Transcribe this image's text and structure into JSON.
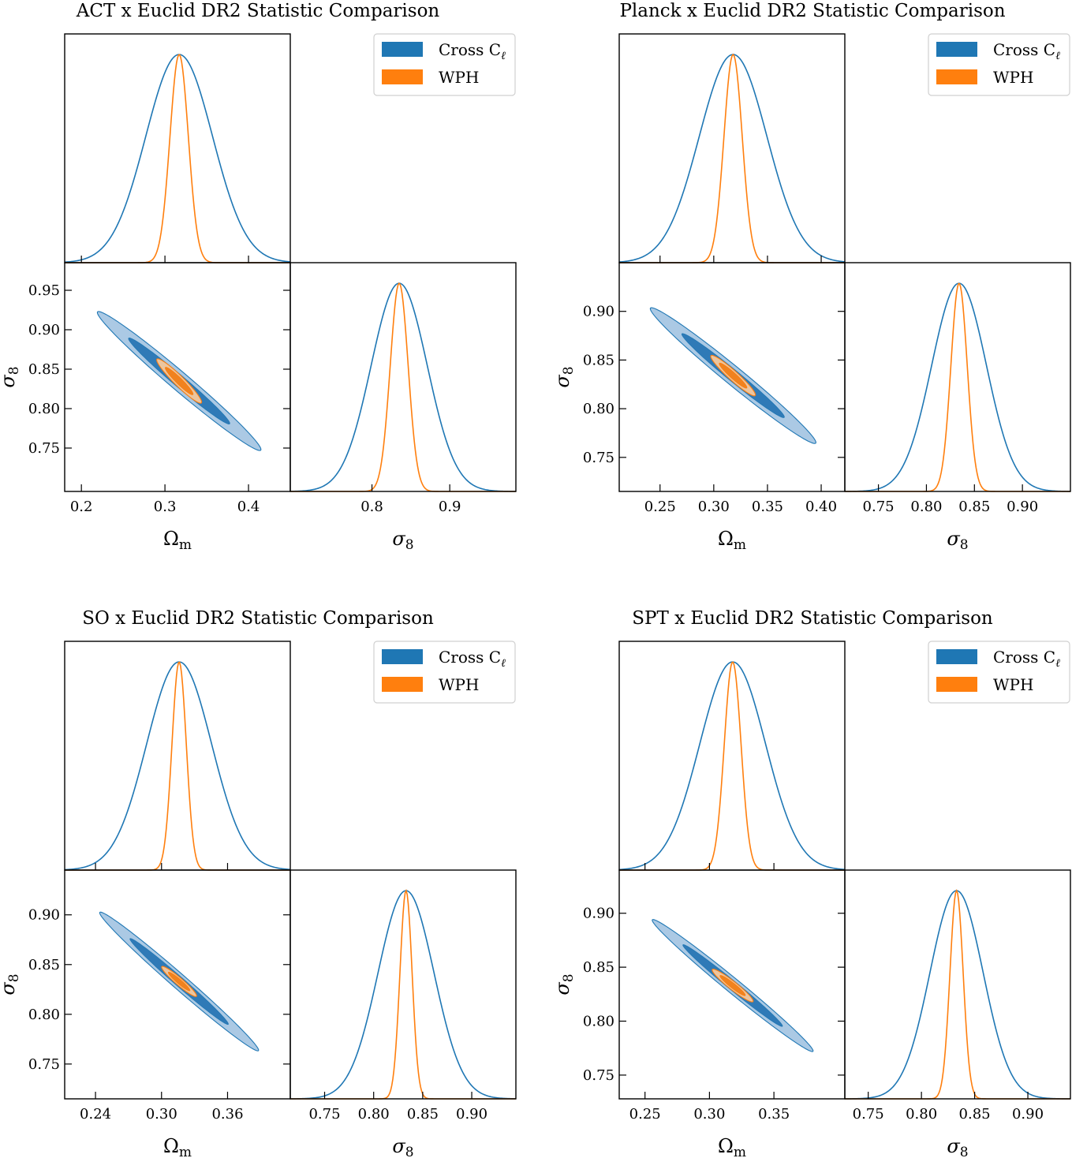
{
  "colors": {
    "cross": "#1f77b4",
    "wph": "#ff7f0e",
    "cross_fill_outer": "#a6c6e3",
    "cross_fill_inner": "#2f7ab7",
    "wph_fill_outer": "#f7c99c",
    "wph_fill_inner": "#f0821f"
  },
  "chart_data": [
    {
      "type": "triangle",
      "title": "ACT x Euclid DR2 Statistic Comparison",
      "legend": {
        "position": "top-right",
        "entries": [
          "Cross C",
          "WPH"
        ],
        "cross_subscript": "ℓ"
      },
      "params": [
        {
          "label": "Ω",
          "sub": "m",
          "range": [
            0.18,
            0.45
          ],
          "ticks": [
            0.2,
            0.3,
            0.4
          ],
          "tick_labels": [
            "0.2",
            "0.3",
            "0.4"
          ]
        },
        {
          "label": "σ",
          "sub": "8",
          "range": [
            0.695,
            0.985
          ],
          "ticks": [
            0.75,
            0.8,
            0.85,
            0.9,
            0.95
          ],
          "tick_labels": [
            "0.75",
            "0.80",
            "0.85",
            "0.90",
            "0.95"
          ],
          "diag_ticks": [
            0.8,
            0.9
          ],
          "diag_tick_labels": [
            "0.8",
            "0.9"
          ]
        }
      ],
      "series": [
        {
          "name": "Cross C",
          "mean": [
            0.317,
            0.835
          ],
          "sigma": [
            0.04,
            0.036
          ],
          "rho": -0.985
        },
        {
          "name": "WPH",
          "mean": [
            0.317,
            0.835
          ],
          "sigma": [
            0.011,
            0.0115
          ],
          "rho": -0.95
        }
      ]
    },
    {
      "type": "triangle",
      "title": "Planck x Euclid DR2 Statistic Comparison",
      "legend": {
        "position": "top-right",
        "entries": [
          "Cross C",
          "WPH"
        ],
        "cross_subscript": "ℓ"
      },
      "params": [
        {
          "label": "Ω",
          "sub": "m",
          "range": [
            0.212,
            0.422
          ],
          "ticks": [
            0.25,
            0.3,
            0.35,
            0.4
          ],
          "tick_labels": [
            "0.25",
            "0.30",
            "0.35",
            "0.40"
          ]
        },
        {
          "label": "σ",
          "sub": "8",
          "range": [
            0.715,
            0.95
          ],
          "ticks": [
            0.75,
            0.8,
            0.85,
            0.9
          ],
          "tick_labels": [
            "0.75",
            "0.80",
            "0.85",
            "0.90"
          ]
        }
      ],
      "series": [
        {
          "name": "Cross C",
          "mean": [
            0.318,
            0.834
          ],
          "sigma": [
            0.0315,
            0.0285
          ],
          "rho": -0.985
        },
        {
          "name": "WPH",
          "mean": [
            0.318,
            0.834
          ],
          "sigma": [
            0.0085,
            0.0085
          ],
          "rho": -0.95
        }
      ]
    },
    {
      "type": "triangle",
      "title": "SO x Euclid DR2 Statistic Comparison",
      "legend": {
        "position": "top-right",
        "entries": [
          "Cross C",
          "WPH"
        ],
        "cross_subscript": "ℓ"
      },
      "params": [
        {
          "label": "Ω",
          "sub": "m",
          "range": [
            0.212,
            0.417
          ],
          "ticks": [
            0.24,
            0.3,
            0.36
          ],
          "tick_labels": [
            "0.24",
            "0.30",
            "0.36"
          ]
        },
        {
          "label": "σ",
          "sub": "8",
          "range": [
            0.715,
            0.945
          ],
          "ticks": [
            0.75,
            0.8,
            0.85,
            0.9
          ],
          "tick_labels": [
            "0.75",
            "0.80",
            "0.85",
            "0.90"
          ]
        }
      ],
      "series": [
        {
          "name": "Cross C",
          "mean": [
            0.316,
            0.833
          ],
          "sigma": [
            0.0295,
            0.0285
          ],
          "rho": -0.99
        },
        {
          "name": "WPH",
          "mean": [
            0.316,
            0.833
          ],
          "sigma": [
            0.0065,
            0.0062
          ],
          "rho": -0.95
        }
      ]
    },
    {
      "type": "triangle",
      "title": "SPT x Euclid DR2 Statistic Comparison",
      "legend": {
        "position": "top-right",
        "entries": [
          "Cross C",
          "WPH"
        ],
        "cross_subscript": "ℓ"
      },
      "params": [
        {
          "label": "Ω",
          "sub": "m",
          "range": [
            0.23,
            0.405
          ],
          "ticks": [
            0.25,
            0.3,
            0.35
          ],
          "tick_labels": [
            "0.25",
            "0.30",
            "0.35"
          ]
        },
        {
          "label": "σ",
          "sub": "8",
          "range": [
            0.728,
            0.94
          ],
          "ticks": [
            0.75,
            0.8,
            0.85,
            0.9
          ],
          "tick_labels": [
            "0.75",
            "0.80",
            "0.85",
            "0.90"
          ]
        }
      ],
      "series": [
        {
          "name": "Cross C",
          "mean": [
            0.318,
            0.833
          ],
          "sigma": [
            0.0255,
            0.025
          ],
          "rho": -0.99
        },
        {
          "name": "WPH",
          "mean": [
            0.318,
            0.833
          ],
          "sigma": [
            0.0065,
            0.0062
          ],
          "rho": -0.95
        }
      ]
    }
  ]
}
